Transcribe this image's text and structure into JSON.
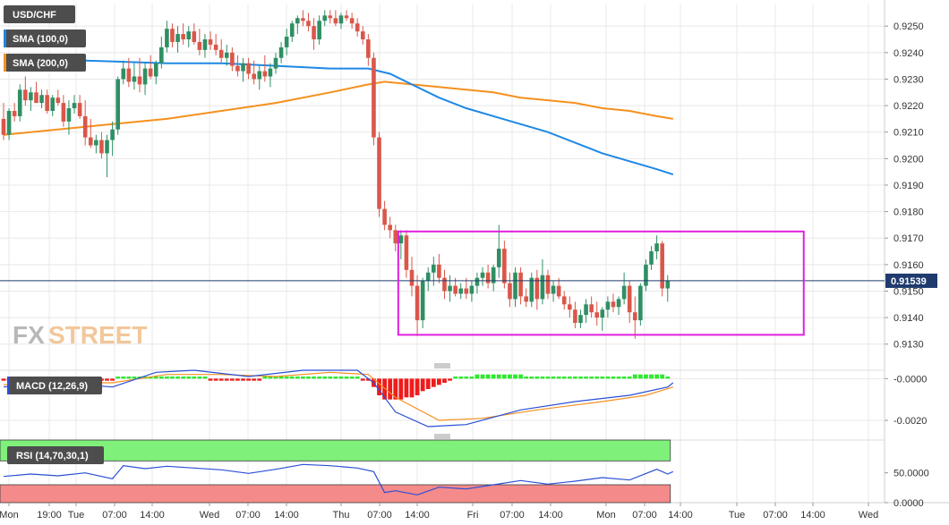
{
  "chart_data": {
    "type": "candlestick",
    "symbol": "USD/CHF",
    "current_price": "0.91539",
    "watermark": {
      "part1": "FX",
      "part2": "STREET"
    },
    "price_axis": {
      "ylim": [
        0.91235,
        0.92585
      ],
      "ticks": [
        "0.9250",
        "0.9240",
        "0.9230",
        "0.9220",
        "0.9210",
        "0.9200",
        "0.9190",
        "0.9180",
        "0.9170",
        "0.9160",
        "0.9150",
        "0.9140",
        "0.9130"
      ]
    },
    "x_ticks": [
      "Mon",
      "19:00",
      "Tue",
      "07:00",
      "14:00",
      "Wed",
      "07:00",
      "14:00",
      "Thu",
      "07:00",
      "14:00",
      "Fri",
      "07:00",
      "14:00",
      "Mon",
      "07:00",
      "14:00",
      "Tue",
      "07:00",
      "14:00",
      "Wed"
    ],
    "candles": [
      [
        0.9215,
        0.9221,
        0.9207,
        0.9209
      ],
      [
        0.9209,
        0.9219,
        0.9207,
        0.9218
      ],
      [
        0.9218,
        0.9221,
        0.9214,
        0.9216
      ],
      [
        0.9216,
        0.9228,
        0.9214,
        0.9226
      ],
      [
        0.9226,
        0.9231,
        0.922,
        0.9222
      ],
      [
        0.9222,
        0.9227,
        0.9218,
        0.9225
      ],
      [
        0.9225,
        0.9229,
        0.9221,
        0.9221
      ],
      [
        0.9221,
        0.9226,
        0.9219,
        0.9224
      ],
      [
        0.9224,
        0.9226,
        0.9217,
        0.9218
      ],
      [
        0.9218,
        0.9224,
        0.9216,
        0.9223
      ],
      [
        0.9223,
        0.9226,
        0.922,
        0.9221
      ],
      [
        0.9221,
        0.9224,
        0.9212,
        0.9214
      ],
      [
        0.9214,
        0.9222,
        0.9209,
        0.9219
      ],
      [
        0.9219,
        0.9224,
        0.9217,
        0.9221
      ],
      [
        0.9221,
        0.9224,
        0.9215,
        0.9216
      ],
      [
        0.9216,
        0.9222,
        0.9205,
        0.9208
      ],
      [
        0.9208,
        0.9215,
        0.9204,
        0.9205
      ],
      [
        0.9205,
        0.9209,
        0.9202,
        0.9207
      ],
      [
        0.9207,
        0.921,
        0.92,
        0.9202
      ],
      [
        0.9202,
        0.9209,
        0.9193,
        0.9207
      ],
      [
        0.9207,
        0.9214,
        0.9201,
        0.9211
      ],
      [
        0.9211,
        0.9231,
        0.9209,
        0.923
      ],
      [
        0.923,
        0.9237,
        0.9228,
        0.9234
      ],
      [
        0.9234,
        0.9238,
        0.9227,
        0.9229
      ],
      [
        0.9229,
        0.9236,
        0.9226,
        0.9231
      ],
      [
        0.9231,
        0.9238,
        0.9225,
        0.9228
      ],
      [
        0.9228,
        0.9236,
        0.9224,
        0.9234
      ],
      [
        0.9234,
        0.9239,
        0.923,
        0.9231
      ],
      [
        0.9231,
        0.9237,
        0.9228,
        0.9236
      ],
      [
        0.9236,
        0.9246,
        0.9234,
        0.9242
      ],
      [
        0.9242,
        0.9252,
        0.924,
        0.9249
      ],
      [
        0.9249,
        0.9251,
        0.9242,
        0.9244
      ],
      [
        0.9244,
        0.925,
        0.924,
        0.9247
      ],
      [
        0.9247,
        0.9251,
        0.9243,
        0.9245
      ],
      [
        0.9245,
        0.925,
        0.9242,
        0.9248
      ],
      [
        0.9248,
        0.9251,
        0.9243,
        0.9244
      ],
      [
        0.9244,
        0.9249,
        0.9239,
        0.9241
      ],
      [
        0.9241,
        0.9247,
        0.9238,
        0.9245
      ],
      [
        0.9245,
        0.9248,
        0.9241,
        0.9243
      ],
      [
        0.9243,
        0.9247,
        0.9239,
        0.9241
      ],
      [
        0.9241,
        0.9245,
        0.9236,
        0.9238
      ],
      [
        0.9238,
        0.9243,
        0.9235,
        0.924
      ],
      [
        0.924,
        0.9242,
        0.9233,
        0.9235
      ],
      [
        0.9235,
        0.9239,
        0.9231,
        0.9233
      ],
      [
        0.9233,
        0.9238,
        0.9229,
        0.9236
      ],
      [
        0.9236,
        0.9238,
        0.923,
        0.9232
      ],
      [
        0.9232,
        0.9237,
        0.9228,
        0.923
      ],
      [
        0.923,
        0.9235,
        0.9226,
        0.9233
      ],
      [
        0.9233,
        0.9239,
        0.9229,
        0.9231
      ],
      [
        0.9231,
        0.9236,
        0.9227,
        0.9234
      ],
      [
        0.9234,
        0.924,
        0.9232,
        0.9238
      ],
      [
        0.9238,
        0.9244,
        0.9236,
        0.9242
      ],
      [
        0.9242,
        0.9249,
        0.9239,
        0.9246
      ],
      [
        0.9246,
        0.9252,
        0.9244,
        0.9251
      ],
      [
        0.9251,
        0.9254,
        0.9247,
        0.9253
      ],
      [
        0.9253,
        0.9256,
        0.925,
        0.9252
      ],
      [
        0.9252,
        0.9255,
        0.9248,
        0.925
      ],
      [
        0.925,
        0.9253,
        0.9241,
        0.9245
      ],
      [
        0.9245,
        0.9254,
        0.9243,
        0.9252
      ],
      [
        0.9252,
        0.9256,
        0.925,
        0.9254
      ],
      [
        0.9254,
        0.9256,
        0.9251,
        0.9253
      ],
      [
        0.9253,
        0.9256,
        0.925,
        0.9251
      ],
      [
        0.9251,
        0.9255,
        0.9249,
        0.9254
      ],
      [
        0.9254,
        0.9256,
        0.9252,
        0.9253
      ],
      [
        0.9253,
        0.9255,
        0.9249,
        0.9251
      ],
      [
        0.9251,
        0.9253,
        0.9246,
        0.9248
      ],
      [
        0.9248,
        0.925,
        0.9243,
        0.9245
      ],
      [
        0.9245,
        0.9247,
        0.9235,
        0.9238
      ],
      [
        0.9238,
        0.924,
        0.9205,
        0.9208
      ],
      [
        0.9208,
        0.921,
        0.9178,
        0.9181
      ],
      [
        0.9181,
        0.9184,
        0.9173,
        0.9175
      ],
      [
        0.9175,
        0.9178,
        0.917,
        0.9173
      ],
      [
        0.9173,
        0.9175,
        0.9165,
        0.9168
      ],
      [
        0.9168,
        0.9173,
        0.9162,
        0.9171
      ],
      [
        0.9171,
        0.9173,
        0.9155,
        0.9158
      ],
      [
        0.9158,
        0.9163,
        0.9148,
        0.9152
      ],
      [
        0.9152,
        0.9156,
        0.9133,
        0.9139
      ],
      [
        0.9139,
        0.9155,
        0.9136,
        0.9154
      ],
      [
        0.9154,
        0.9159,
        0.915,
        0.9157
      ],
      [
        0.9157,
        0.9163,
        0.9152,
        0.916
      ],
      [
        0.916,
        0.9164,
        0.9153,
        0.9155
      ],
      [
        0.9155,
        0.9158,
        0.9147,
        0.915
      ],
      [
        0.915,
        0.9156,
        0.9146,
        0.9152
      ],
      [
        0.9152,
        0.9155,
        0.9148,
        0.9149
      ],
      [
        0.9149,
        0.9153,
        0.9147,
        0.9151
      ],
      [
        0.9151,
        0.9155,
        0.9147,
        0.9149
      ],
      [
        0.9149,
        0.9154,
        0.9146,
        0.9152
      ],
      [
        0.9152,
        0.9157,
        0.9149,
        0.9155
      ],
      [
        0.9155,
        0.9159,
        0.9152,
        0.9157
      ],
      [
        0.9157,
        0.916,
        0.9151,
        0.9153
      ],
      [
        0.9153,
        0.916,
        0.915,
        0.9159
      ],
      [
        0.9159,
        0.9175,
        0.9155,
        0.9166
      ],
      [
        0.9166,
        0.9169,
        0.9151,
        0.9153
      ],
      [
        0.9153,
        0.9157,
        0.9144,
        0.9147
      ],
      [
        0.9147,
        0.9159,
        0.9144,
        0.9157
      ],
      [
        0.9157,
        0.9159,
        0.9145,
        0.9148
      ],
      [
        0.9148,
        0.9151,
        0.9144,
        0.9146
      ],
      [
        0.9146,
        0.9157,
        0.9144,
        0.9155
      ],
      [
        0.9155,
        0.9158,
        0.9143,
        0.9147
      ],
      [
        0.9147,
        0.9162,
        0.9145,
        0.9156
      ],
      [
        0.9156,
        0.9158,
        0.9147,
        0.9149
      ],
      [
        0.9149,
        0.9154,
        0.9146,
        0.9152
      ],
      [
        0.9152,
        0.9155,
        0.9147,
        0.9148
      ],
      [
        0.9148,
        0.915,
        0.9143,
        0.9145
      ],
      [
        0.9145,
        0.9148,
        0.914,
        0.9143
      ],
      [
        0.9143,
        0.9146,
        0.9136,
        0.9138
      ],
      [
        0.9138,
        0.9143,
        0.9136,
        0.9141
      ],
      [
        0.9141,
        0.9147,
        0.9138,
        0.9145
      ],
      [
        0.9145,
        0.9148,
        0.914,
        0.9142
      ],
      [
        0.9142,
        0.9146,
        0.9137,
        0.914
      ],
      [
        0.914,
        0.9144,
        0.9135,
        0.9143
      ],
      [
        0.9143,
        0.9148,
        0.914,
        0.9146
      ],
      [
        0.9146,
        0.9149,
        0.9142,
        0.9144
      ],
      [
        0.9144,
        0.9148,
        0.9141,
        0.9147
      ],
      [
        0.9147,
        0.9157,
        0.9145,
        0.9152
      ],
      [
        0.9152,
        0.9154,
        0.9138,
        0.9142
      ],
      [
        0.9142,
        0.9148,
        0.9132,
        0.9139
      ],
      [
        0.9139,
        0.9153,
        0.9137,
        0.9152
      ],
      [
        0.9152,
        0.9162,
        0.915,
        0.916
      ],
      [
        0.916,
        0.9167,
        0.9158,
        0.9165
      ],
      [
        0.9165,
        0.9171,
        0.9162,
        0.9168
      ],
      [
        0.9168,
        0.9169,
        0.9148,
        0.9151
      ],
      [
        0.9151,
        0.9156,
        0.9146,
        0.9154
      ]
    ],
    "sma100": [
      [
        0,
        0.9237
      ],
      [
        15,
        0.9237
      ],
      [
        30,
        0.9236
      ],
      [
        40,
        0.9236
      ],
      [
        50,
        0.9235
      ],
      [
        60,
        0.9234
      ],
      [
        67,
        0.9234
      ],
      [
        71,
        0.9232
      ],
      [
        75,
        0.9228
      ],
      [
        80,
        0.9223
      ],
      [
        85,
        0.9219
      ],
      [
        90,
        0.9216
      ],
      [
        95,
        0.9213
      ],
      [
        100,
        0.921
      ],
      [
        105,
        0.9206
      ],
      [
        110,
        0.9202
      ],
      [
        115,
        0.9199
      ],
      [
        120,
        0.9196
      ],
      [
        123,
        0.9194
      ]
    ],
    "sma200": [
      [
        0,
        0.9209
      ],
      [
        10,
        0.9211
      ],
      [
        20,
        0.9213
      ],
      [
        30,
        0.9215
      ],
      [
        40,
        0.9218
      ],
      [
        50,
        0.9221
      ],
      [
        60,
        0.9225
      ],
      [
        67,
        0.9228
      ],
      [
        70,
        0.9229
      ],
      [
        75,
        0.9228
      ],
      [
        80,
        0.9227
      ],
      [
        85,
        0.9226
      ],
      [
        90,
        0.9225
      ],
      [
        95,
        0.9223
      ],
      [
        100,
        0.9222
      ],
      [
        105,
        0.9221
      ],
      [
        110,
        0.9219
      ],
      [
        115,
        0.9218
      ],
      [
        120,
        0.9216
      ],
      [
        123,
        0.9215
      ]
    ],
    "indicators": {
      "sma100": {
        "label": "SMA (100,0)",
        "color": "#1e88e5"
      },
      "sma200": {
        "label": "SMA (200,0)",
        "color": "#f5901e"
      }
    },
    "range_box": {
      "from_index": 73,
      "to_index": 147,
      "high": 0.91725,
      "low": 0.91335,
      "color": "#e020e0"
    },
    "macd": {
      "label": "MACD (12,26,9)",
      "ylim": [
        -0.0026,
        0.0004
      ],
      "ticks": [
        "-0.0000",
        "-0.0020"
      ],
      "histogram": [
        -0.0001,
        -0.0001,
        -0.0001,
        -0.0001,
        -0.0001,
        -0.0001,
        -0.0001,
        -0.0001,
        -0.0001,
        -0.0001,
        -0.0001,
        -0.0001,
        -0.0001,
        -0.0001,
        -0.0001,
        -0.0001,
        -0.0001,
        -0.0001,
        -0.0001,
        -0.0001,
        -0.0001,
        0.0001,
        0.0001,
        0.0001,
        0.0001,
        0.0001,
        0.0001,
        0.0001,
        0.0001,
        0.0001,
        0.0001,
        0.0001,
        0.0001,
        0.0001,
        0.0001,
        0.0001,
        0.0001,
        0.0001,
        -0.0001,
        -0.0001,
        -0.0001,
        -0.0001,
        -0.0001,
        -0.0001,
        -0.0001,
        -0.0001,
        -0.0001,
        -0.0001,
        0.0001,
        0.0001,
        0.0001,
        0.0001,
        0.0001,
        0.0001,
        0.0001,
        0.0001,
        0.0001,
        0.0001,
        0.0001,
        0.0001,
        0.0001,
        0.0001,
        0.0001,
        0.0001,
        0.0001,
        0.0001,
        -0.0001,
        -0.0001,
        -0.0004,
        -0.0008,
        -0.001,
        -0.001,
        -0.001,
        -0.001,
        -0.0009,
        -0.0009,
        -0.0008,
        -0.0006,
        -0.0005,
        -0.0004,
        -0.0003,
        -0.0002,
        -0.0001,
        0.0001,
        0.0001,
        0.0001,
        0.0001,
        0.0002,
        0.0002,
        0.0002,
        0.0002,
        0.0002,
        0.0002,
        0.0002,
        0.0002,
        0.0002,
        0.0001,
        0.0001,
        0.0001,
        0.0001,
        0.0001,
        0.0001,
        0.0001,
        0.0001,
        0.0001,
        0.0001,
        0.0001,
        0.0001,
        0.0001,
        0.0001,
        0.0001,
        0.0001,
        0.0001,
        0.0001,
        0.0001,
        0.0001,
        0.0002,
        0.0002,
        0.0002,
        0.0002,
        0.0002,
        0.0002,
        0.0001
      ],
      "macd_line": [
        [
          0,
          -0.0004
        ],
        [
          10,
          -0.0002
        ],
        [
          20,
          -0.0004
        ],
        [
          28,
          0.0003
        ],
        [
          35,
          0.0004
        ],
        [
          45,
          0.0001
        ],
        [
          55,
          0.0004
        ],
        [
          65,
          0.0004
        ],
        [
          68,
          -0.0002
        ],
        [
          72,
          -0.0016
        ],
        [
          78,
          -0.0023
        ],
        [
          85,
          -0.0022
        ],
        [
          95,
          -0.0015
        ],
        [
          105,
          -0.0011
        ],
        [
          115,
          -0.0008
        ],
        [
          122,
          -0.0004
        ],
        [
          123,
          -0.0002
        ]
      ],
      "signal_line": [
        [
          0,
          -0.0003
        ],
        [
          10,
          -0.0002
        ],
        [
          20,
          -0.0002
        ],
        [
          30,
          0.0002
        ],
        [
          40,
          0.0002
        ],
        [
          50,
          0.0001
        ],
        [
          60,
          0.0003
        ],
        [
          67,
          0.0002
        ],
        [
          72,
          -0.0009
        ],
        [
          80,
          -0.002
        ],
        [
          88,
          -0.0019
        ],
        [
          98,
          -0.0015
        ],
        [
          110,
          -0.0011
        ],
        [
          118,
          -0.0008
        ],
        [
          123,
          -0.0004
        ]
      ]
    },
    "rsi": {
      "label": "RSI (14,70,30,1)",
      "ylim": [
        0,
        105
      ],
      "overbought": 70,
      "oversold": 30,
      "ticks": [
        "50.0000",
        "0.0000"
      ],
      "line": [
        [
          0,
          44
        ],
        [
          5,
          48
        ],
        [
          10,
          45
        ],
        [
          15,
          50
        ],
        [
          20,
          40
        ],
        [
          22,
          62
        ],
        [
          26,
          57
        ],
        [
          30,
          61
        ],
        [
          35,
          58
        ],
        [
          40,
          55
        ],
        [
          45,
          49
        ],
        [
          50,
          56
        ],
        [
          55,
          64
        ],
        [
          60,
          62
        ],
        [
          65,
          58
        ],
        [
          68,
          52
        ],
        [
          70,
          17
        ],
        [
          72,
          20
        ],
        [
          76,
          13
        ],
        [
          80,
          26
        ],
        [
          85,
          23
        ],
        [
          90,
          30
        ],
        [
          95,
          37
        ],
        [
          100,
          31
        ],
        [
          105,
          36
        ],
        [
          110,
          42
        ],
        [
          115,
          38
        ],
        [
          120,
          56
        ],
        [
          122,
          48
        ],
        [
          123,
          52
        ]
      ]
    }
  }
}
